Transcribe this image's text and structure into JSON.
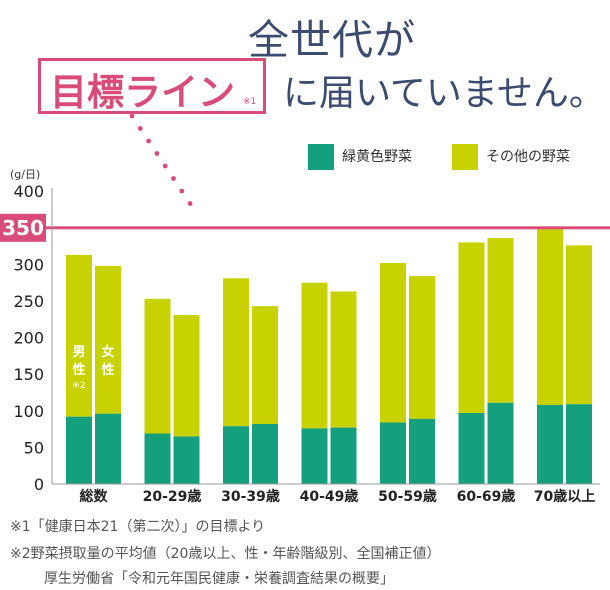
{
  "headline": {
    "top": "全世代が",
    "target_label": "目標ライン",
    "target_note": "※1",
    "bottom": "に届いていません。"
  },
  "legend": {
    "green": "緑黄色野菜",
    "yellow": "その他の野菜"
  },
  "colors": {
    "green": "#14a07c",
    "yellow": "#c8d200",
    "target_line": "#d94b78",
    "headline": "#3c4c70"
  },
  "chart_data": {
    "type": "bar",
    "stacked": true,
    "unit": "(g/日)",
    "ylim": [
      0,
      400
    ],
    "yticks": [
      0,
      50,
      100,
      150,
      200,
      250,
      300,
      350,
      400
    ],
    "target_value": 350,
    "target_label": "350",
    "categories": [
      "総数",
      "20-29歳",
      "30-39歳",
      "40-49歳",
      "50-59歳",
      "60-69歳",
      "70歳以上"
    ],
    "bar_labels": {
      "male": "男性",
      "female": "女性",
      "note": "※2"
    },
    "series": [
      {
        "name": "緑黄色野菜",
        "male": [
          92,
          69,
          79,
          76,
          84,
          97,
          108
        ],
        "female": [
          96,
          65,
          82,
          77,
          89,
          111,
          109
        ]
      },
      {
        "name": "その他の野菜",
        "male": [
          221,
          184,
          202,
          199,
          218,
          233,
          241
        ],
        "female": [
          202,
          166,
          161,
          186,
          195,
          225,
          217
        ]
      }
    ]
  },
  "footnotes": [
    "※1「健康日本21（第二次）」の目標より",
    "※2野菜摂取量の平均値（20歳以上、性・年齢階級別、全国補正値）",
    "厚生労働省「令和元年国民健康・栄養調査結果の概要」"
  ]
}
